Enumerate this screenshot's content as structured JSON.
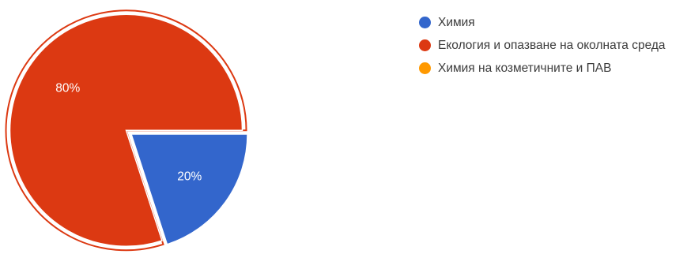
{
  "chart_data": {
    "type": "pie",
    "categories": [
      "Химия",
      "Екология и опазване на околната среда",
      "Химия на козметичните и ПАВ"
    ],
    "values": [
      20,
      80,
      0
    ],
    "labels": [
      "20%",
      "80%",
      ""
    ],
    "colors": [
      "#3366cc",
      "#dc3912",
      "#ff9900"
    ],
    "exploded": "Екология и опазване на околната среда",
    "legend_position": "right"
  },
  "legend": {
    "items": [
      {
        "label": "Химия",
        "color": "#3366cc"
      },
      {
        "label": "Екология и опазване на околната среда",
        "color": "#dc3912"
      },
      {
        "label": "Химия на козметичните и ПАВ",
        "color": "#ff9900"
      }
    ]
  }
}
